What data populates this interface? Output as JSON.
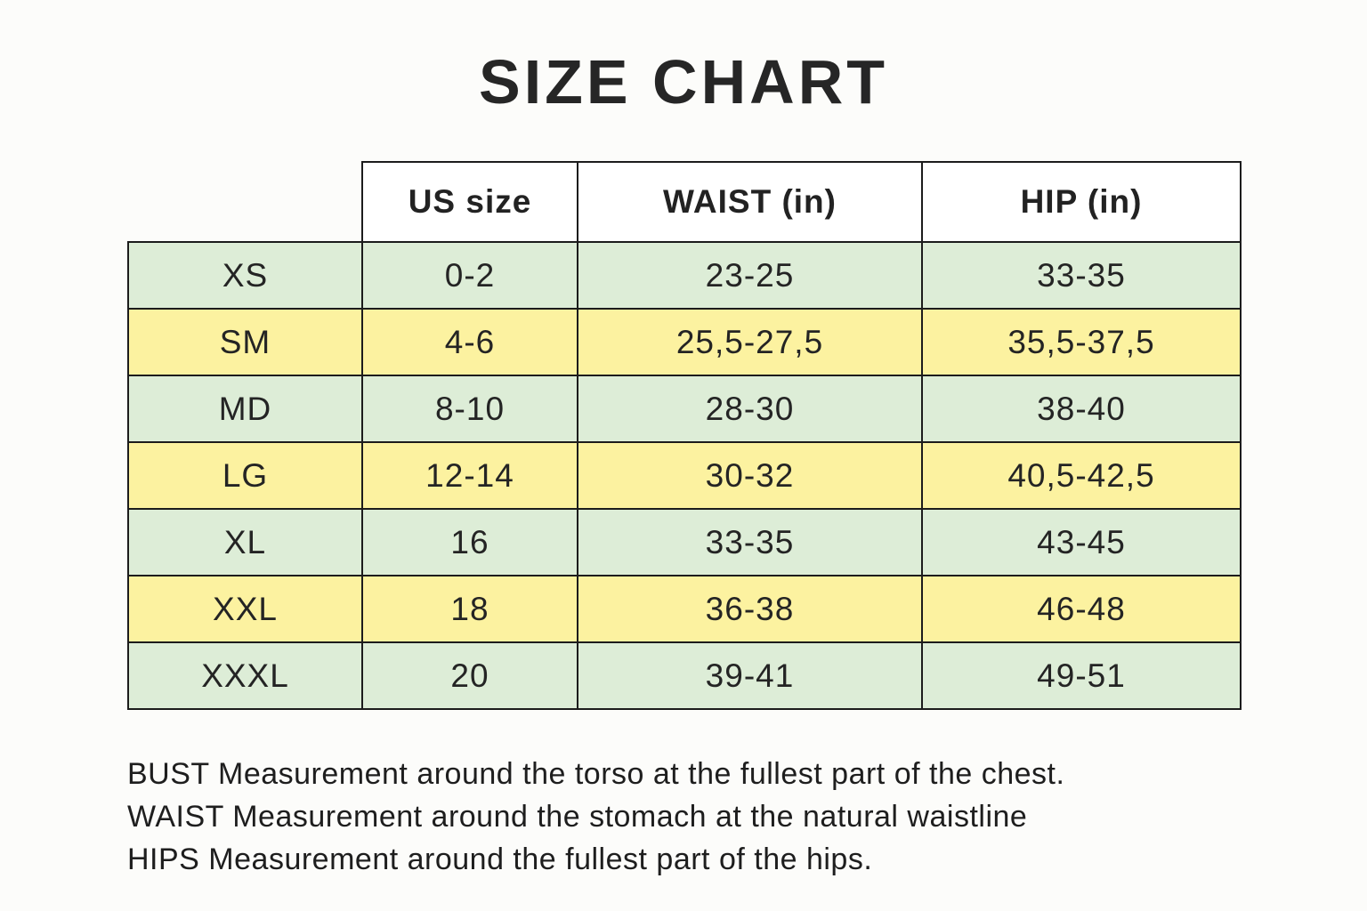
{
  "title": "SIZE CHART",
  "chart_data": {
    "type": "table",
    "title": "SIZE CHART",
    "columns": [
      "",
      "US size",
      "WAIST (in)",
      "HIP (in)"
    ],
    "rows": [
      [
        "XS",
        "0-2",
        "23-25",
        "33-35"
      ],
      [
        "SM",
        "4-6",
        "25,5-27,5",
        "35,5-37,5"
      ],
      [
        "MD",
        "8-10",
        "28-30",
        "38-40"
      ],
      [
        "LG",
        "12-14",
        "30-32",
        "40,5-42,5"
      ],
      [
        "XL",
        "16",
        "33-35",
        "43-45"
      ],
      [
        "XXL",
        "18",
        "36-38",
        "46-48"
      ],
      [
        "XXXL",
        "20",
        "39-41",
        "49-51"
      ]
    ],
    "layout_hints": {
      "header_background": "#ffffff",
      "row_stripe_pattern": [
        "green",
        "yellow",
        "green",
        "yellow",
        "green",
        "yellow",
        "green"
      ],
      "corner_cell_empty": true
    }
  },
  "notes": [
    "BUST Measurement around the torso at the fullest part of the chest.",
    "WAIST Measurement around the stomach at the natural waistline",
    "HIPS Measurement around the fullest part of the hips."
  ],
  "colors": {
    "row_green": "#ddedd7",
    "row_yellow": "#fcf2a0",
    "border_color": "#1c1c1c",
    "text_color": "#222222"
  }
}
